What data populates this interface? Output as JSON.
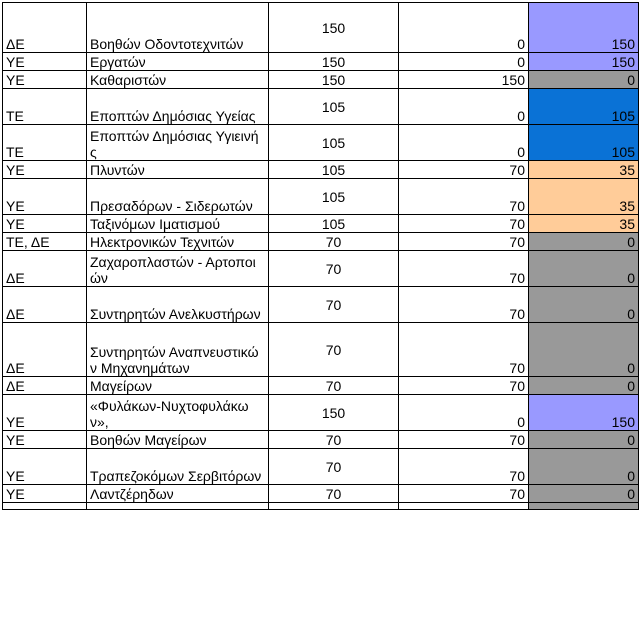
{
  "colors": {
    "purple": "#9999ff",
    "orange": "#ffcc99",
    "gray": "#999999",
    "blue": "#0a72d6",
    "border": "#000000"
  },
  "rows": [
    {
      "category": "ΔΕ",
      "specialty": "Βοηθών Οδοντοτεχνιτών",
      "total": "150",
      "filled": "0",
      "diff": "150",
      "diff_color": "purple",
      "h": 50
    },
    {
      "category": "ΥΕ",
      "specialty": "Εργατών",
      "total": "150",
      "filled": "0",
      "diff": "150",
      "diff_color": "purple",
      "h": 18
    },
    {
      "category": "ΥΕ",
      "specialty": "Καθαριστών",
      "total": "150",
      "filled": "150",
      "diff": "0",
      "diff_color": "gray",
      "h": 18
    },
    {
      "category": "ΤΕ",
      "specialty": "Εποπτών Δημόσιας Υγείας",
      "total": "105",
      "filled": "0",
      "diff": "105",
      "diff_color": "blue",
      "h": 36
    },
    {
      "category": "ΤΕ",
      "specialty": "Εποπτών Δημόσιας Υγιεινής",
      "total": "105",
      "filled": "0",
      "diff": "105",
      "diff_color": "blue",
      "h": 36
    },
    {
      "category": "ΥΕ",
      "specialty": "Πλυντών",
      "total": "105",
      "filled": "70",
      "diff": "35",
      "diff_color": "orange",
      "h": 18
    },
    {
      "category": "ΥΕ",
      "specialty": "Πρεσαδόρων - Σιδερωτών",
      "total": "105",
      "filled": "70",
      "diff": "35",
      "diff_color": "orange",
      "h": 36
    },
    {
      "category": "ΥΕ",
      "specialty": "Ταξινόμων Ιματισμού",
      "total": "105",
      "filled": "70",
      "diff": "35",
      "diff_color": "orange",
      "h": 18
    },
    {
      "category": "ΤΕ, ΔΕ",
      "specialty": "Ηλεκτρονικών Τεχνιτών",
      "total": "70",
      "filled": "70",
      "diff": "0",
      "diff_color": "gray",
      "h": 18
    },
    {
      "category": "ΔΕ",
      "specialty": "Ζαχαροπλαστών - Αρτοποιών",
      "total": "70",
      "filled": "70",
      "diff": "0",
      "diff_color": "gray",
      "h": 36
    },
    {
      "category": "ΔΕ",
      "specialty": "Συντηρητών Ανελκυστήρων",
      "total": "70",
      "filled": "70",
      "diff": "0",
      "diff_color": "gray",
      "h": 36
    },
    {
      "category": "ΔΕ",
      "specialty": "Συντηρητών Αναπνευστικών Μηχανημάτων",
      "total": "70",
      "filled": "70",
      "diff": "0",
      "diff_color": "gray",
      "h": 54
    },
    {
      "category": "ΔΕ",
      "specialty": "Μαγείρων",
      "total": "70",
      "filled": "70",
      "diff": "0",
      "diff_color": "gray",
      "h": 18
    },
    {
      "category": "ΥΕ",
      "specialty": "«Φυλάκων-Νυχτοφυλάκων»,",
      "total": "150",
      "filled": "0",
      "diff": "150",
      "diff_color": "purple",
      "h": 36
    },
    {
      "category": "ΥΕ",
      "specialty": "Βοηθών Μαγείρων",
      "total": "70",
      "filled": "70",
      "diff": "0",
      "diff_color": "gray",
      "h": 18
    },
    {
      "category": "ΥΕ",
      "specialty": "Τραπεζοκόμων Σερβιτόρων",
      "total": "70",
      "filled": "70",
      "diff": "0",
      "diff_color": "gray",
      "h": 36
    },
    {
      "category": "ΥΕ",
      "specialty": "Λαντζέρηδων",
      "total": "70",
      "filled": "70",
      "diff": "0",
      "diff_color": "gray",
      "h": 18
    }
  ]
}
